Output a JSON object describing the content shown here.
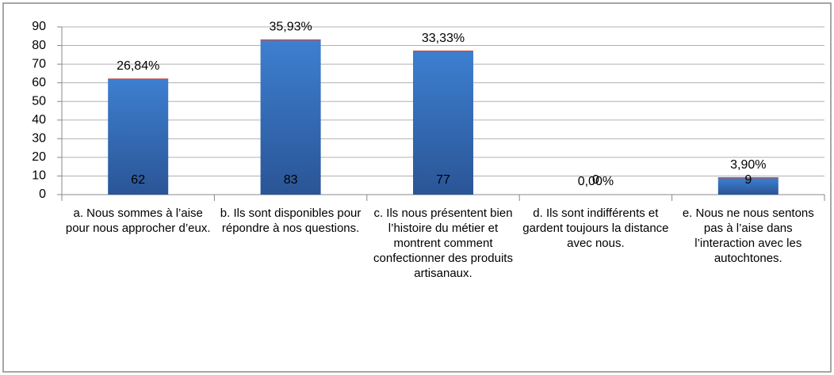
{
  "chart_data": {
    "type": "bar",
    "categories": [
      "a. Nous sommes à l’aise pour nous approcher d’eux.",
      "b. Ils sont disponibles pour répondre à nos questions.",
      "c. Ils nous présentent bien l’histoire du métier et montrent comment confectionner des produits artisanaux.",
      "d. Ils sont indifférents et gardent toujours la distance avec nous.",
      "e. Nous ne nous sentons pas à l’aise dans l’interaction avec les autochtones."
    ],
    "values": [
      62,
      83,
      77,
      0,
      9
    ],
    "percentages": {
      "values": [
        26.84,
        35.93,
        33.33,
        0,
        3.9
      ],
      "value_labels": [
        "26,84%",
        "35,93%",
        "33,33%",
        "0,00%",
        "3,90%"
      ]
    },
    "color": "#3a78c8",
    "ylim": [
      0,
      90
    ],
    "yticks": [
      0,
      10,
      20,
      30,
      40,
      50,
      60,
      70,
      80,
      90
    ],
    "grid": true
  }
}
